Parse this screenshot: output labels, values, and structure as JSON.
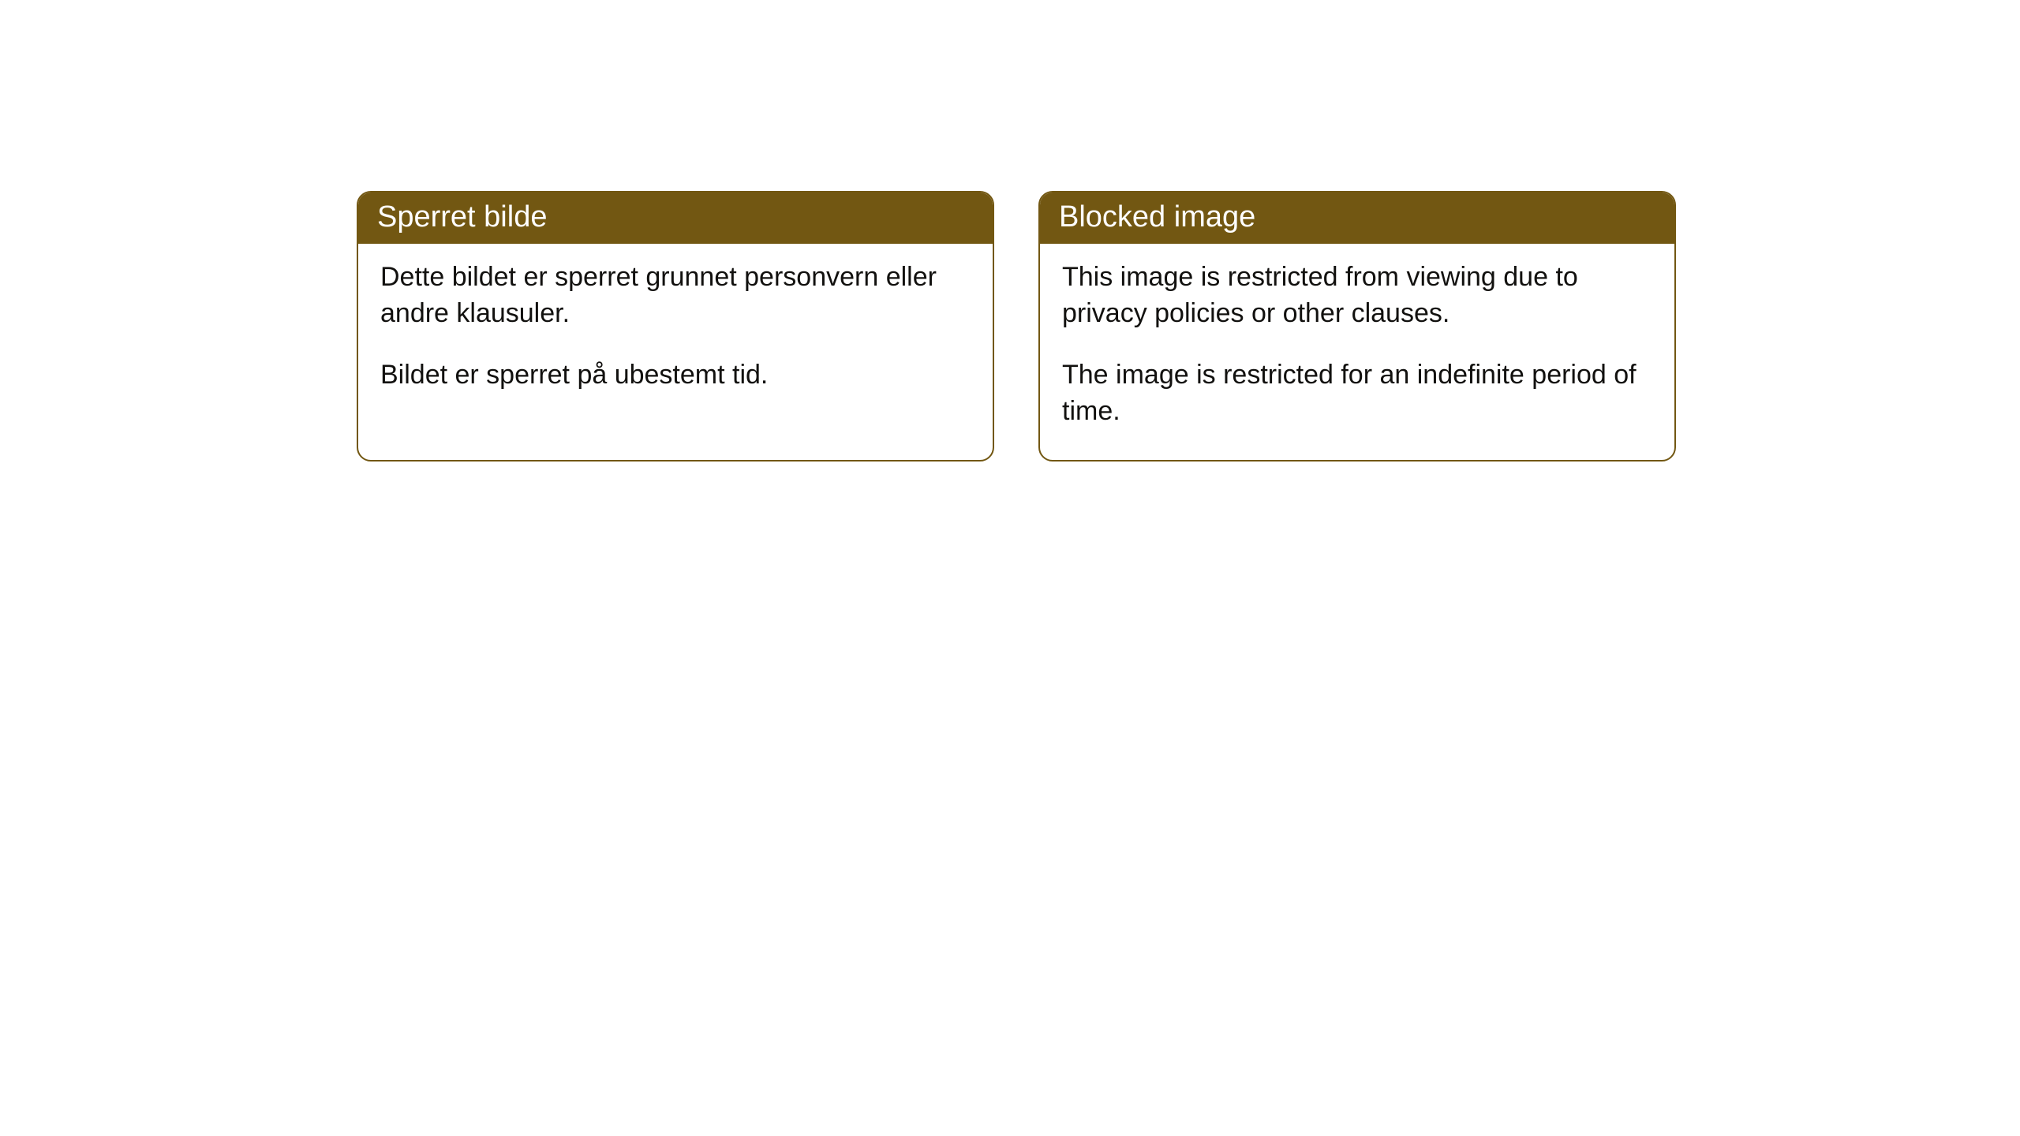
{
  "cards": [
    {
      "title": "Sperret bilde",
      "paragraph1": "Dette bildet er sperret grunnet personvern eller andre klausuler.",
      "paragraph2": "Bildet er sperret på ubestemt tid."
    },
    {
      "title": "Blocked image",
      "paragraph1": "This image is restricted from viewing due to privacy policies or other clauses.",
      "paragraph2": "The image is restricted for an indefinite period of time."
    }
  ],
  "styling": {
    "header_bg_color": "#725712",
    "header_text_color": "#ffffff",
    "border_color": "#725712",
    "body_bg_color": "#ffffff",
    "body_text_color": "#12110f",
    "border_radius": 18,
    "header_fontsize": 38,
    "body_fontsize": 34
  }
}
